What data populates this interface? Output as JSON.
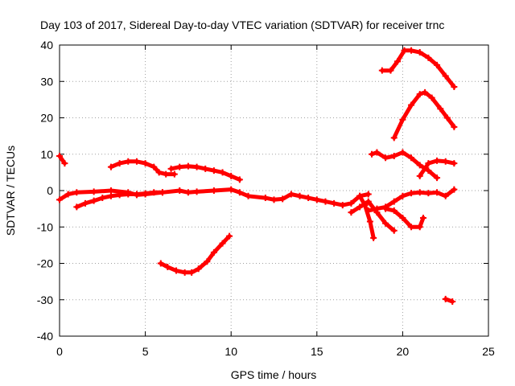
{
  "chart_data": {
    "type": "line",
    "title": "Day 103 of 2017, Sidereal Day-to-day VTEC variation (SDTVAR) for receiver trnc",
    "xlabel": "GPS time / hours",
    "ylabel": "SDTVAR / TECUs",
    "xlim": [
      0,
      25
    ],
    "ylim": [
      -40,
      40
    ],
    "x_ticks": [
      0,
      5,
      10,
      15,
      20,
      25
    ],
    "y_ticks": [
      -40,
      -30,
      -20,
      -10,
      0,
      10,
      20,
      30,
      40
    ],
    "x_tick_labels": [
      "0",
      "5",
      "10",
      "15",
      "20",
      "25"
    ],
    "y_tick_labels": [
      "-40",
      "-30",
      "-20",
      "-10",
      "0",
      "10",
      "20",
      "30",
      "40"
    ],
    "grid": true,
    "line_color": "#ff0000",
    "series": [
      {
        "name": "s1",
        "x": [
          0.0,
          0.3
        ],
        "y": [
          9.5,
          7.5
        ]
      },
      {
        "name": "s2",
        "x": [
          0.0,
          0.5,
          1.0,
          2.0,
          3.0,
          4.0,
          4.5,
          5.0,
          6.0,
          7.0,
          7.5,
          8.0,
          9.0,
          10.0,
          10.5,
          11.0,
          12.0,
          12.5,
          13.0,
          13.5,
          14.0,
          14.5,
          15.0,
          15.5,
          16.0,
          16.5,
          17.0,
          17.5,
          18.0
        ],
        "y": [
          -2.5,
          -1.0,
          -0.5,
          -0.3,
          0.0,
          -0.5,
          -1.2,
          -1.0,
          -0.5,
          0.0,
          -0.5,
          -0.3,
          0.0,
          0.3,
          -0.5,
          -1.5,
          -2.0,
          -2.5,
          -2.3,
          -1.0,
          -1.5,
          -2.0,
          -2.5,
          -3.0,
          -3.5,
          -4.0,
          -3.5,
          -1.5,
          -1.0
        ]
      },
      {
        "name": "s3",
        "x": [
          1.0,
          1.5,
          2.0,
          2.5,
          3.0,
          3.5,
          4.0,
          4.5,
          5.0,
          5.5,
          6.0
        ],
        "y": [
          -4.5,
          -3.5,
          -2.8,
          -2.0,
          -1.5,
          -1.2,
          -1.0,
          -1.0,
          -0.8,
          -0.5,
          -0.5
        ]
      },
      {
        "name": "s4",
        "x": [
          3.0,
          3.5,
          4.0,
          4.5,
          5.0,
          5.5,
          5.8,
          6.2,
          6.7
        ],
        "y": [
          6.5,
          7.5,
          8.0,
          8.0,
          7.5,
          6.5,
          5.0,
          4.5,
          4.5
        ]
      },
      {
        "name": "s5",
        "x": [
          6.5,
          7.0,
          7.5,
          8.0,
          8.5,
          9.0,
          9.5,
          10.0,
          10.5
        ],
        "y": [
          6.0,
          6.5,
          6.7,
          6.5,
          6.0,
          5.5,
          5.0,
          4.0,
          3.0
        ]
      },
      {
        "name": "s6",
        "x": [
          5.9,
          6.3,
          6.8,
          7.3,
          7.7,
          8.1,
          8.6,
          9.0,
          9.5,
          9.9
        ],
        "y": [
          -20.0,
          -21.0,
          -22.0,
          -22.5,
          -22.5,
          -21.5,
          -19.5,
          -17.0,
          -14.5,
          -12.5
        ]
      },
      {
        "name": "s7",
        "x": [
          17.0,
          17.5,
          18.0,
          18.5,
          19.0,
          19.5
        ],
        "y": [
          -6.0,
          -4.5,
          -3.0,
          -6.0,
          -9.0,
          -11.0
        ]
      },
      {
        "name": "s8",
        "x": [
          17.5,
          17.8,
          18.1,
          18.3
        ],
        "y": [
          -1.5,
          -4.0,
          -8.5,
          -13.0
        ]
      },
      {
        "name": "s9",
        "x": [
          18.0,
          18.5,
          19.0,
          19.5,
          20.0,
          20.5,
          21.0,
          21.5,
          22.0,
          22.5,
          23.0
        ],
        "y": [
          -5.5,
          -5.0,
          -4.5,
          -3.0,
          -1.5,
          -0.7,
          -0.5,
          -0.7,
          -0.5,
          -1.5,
          0.3
        ]
      },
      {
        "name": "s10",
        "x": [
          19.0,
          19.5,
          20.0,
          20.5,
          21.0,
          21.2
        ],
        "y": [
          -5.0,
          -5.5,
          -7.5,
          -10.0,
          -10.0,
          -7.5
        ]
      },
      {
        "name": "s11",
        "x": [
          18.2,
          18.5,
          19.0,
          19.5,
          20.0,
          20.5,
          21.0,
          21.5,
          22.0
        ],
        "y": [
          10.0,
          10.5,
          9.0,
          9.5,
          10.5,
          9.0,
          7.0,
          5.5,
          3.5
        ]
      },
      {
        "name": "s12",
        "x": [
          21.0,
          21.5,
          22.0,
          22.5,
          23.0
        ],
        "y": [
          4.0,
          7.5,
          8.2,
          8.0,
          7.5
        ]
      },
      {
        "name": "s13",
        "x": [
          19.5,
          20.0,
          20.5,
          21.0,
          21.3,
          21.7,
          22.2,
          22.6,
          23.0
        ],
        "y": [
          14.5,
          19.5,
          23.5,
          26.5,
          27.0,
          25.5,
          22.5,
          20.0,
          17.5
        ]
      },
      {
        "name": "s14",
        "x": [
          18.8,
          19.3,
          19.7,
          20.1,
          20.5,
          21.0,
          21.5,
          22.0,
          22.5,
          23.0
        ],
        "y": [
          33.0,
          33.0,
          35.5,
          38.5,
          38.5,
          38.0,
          36.5,
          34.5,
          31.5,
          28.5
        ]
      },
      {
        "name": "s15",
        "x": [
          22.5,
          22.9
        ],
        "y": [
          -29.8,
          -30.5
        ]
      }
    ]
  }
}
